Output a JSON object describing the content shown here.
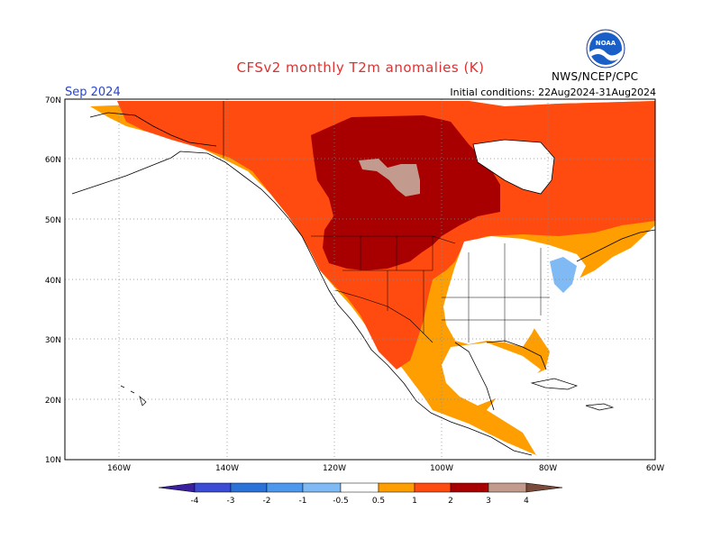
{
  "header": {
    "title": "CFSv2 monthly T2m anomalies (K)",
    "month": "Sep 2024",
    "initial_conditions": "Initial conditions: 22Aug2024-31Aug2024",
    "agency": "NWS/NCEP/CPC",
    "logo_text": "NOAA"
  },
  "map": {
    "lat_labels": [
      "70N",
      "60N",
      "50N",
      "40N",
      "30N",
      "20N",
      "10N"
    ],
    "lon_labels": [
      "160W",
      "140W",
      "120W",
      "100W",
      "80W",
      "60W"
    ],
    "colors": {
      "land_outline": "#000000",
      "grid": "#888888"
    }
  },
  "colorbar": {
    "ticks": [
      "-4",
      "-3",
      "-2",
      "-1",
      "-0.5",
      "0.5",
      "1",
      "2",
      "3",
      "4"
    ],
    "colors": [
      "#3a1f9e",
      "#3c4bd4",
      "#2a72d8",
      "#4d98ec",
      "#7fbaf4",
      "#ffffff",
      "#ff9e00",
      "#ff4a10",
      "#a80000",
      "#c39a8e",
      "#7a4a3a"
    ]
  }
}
